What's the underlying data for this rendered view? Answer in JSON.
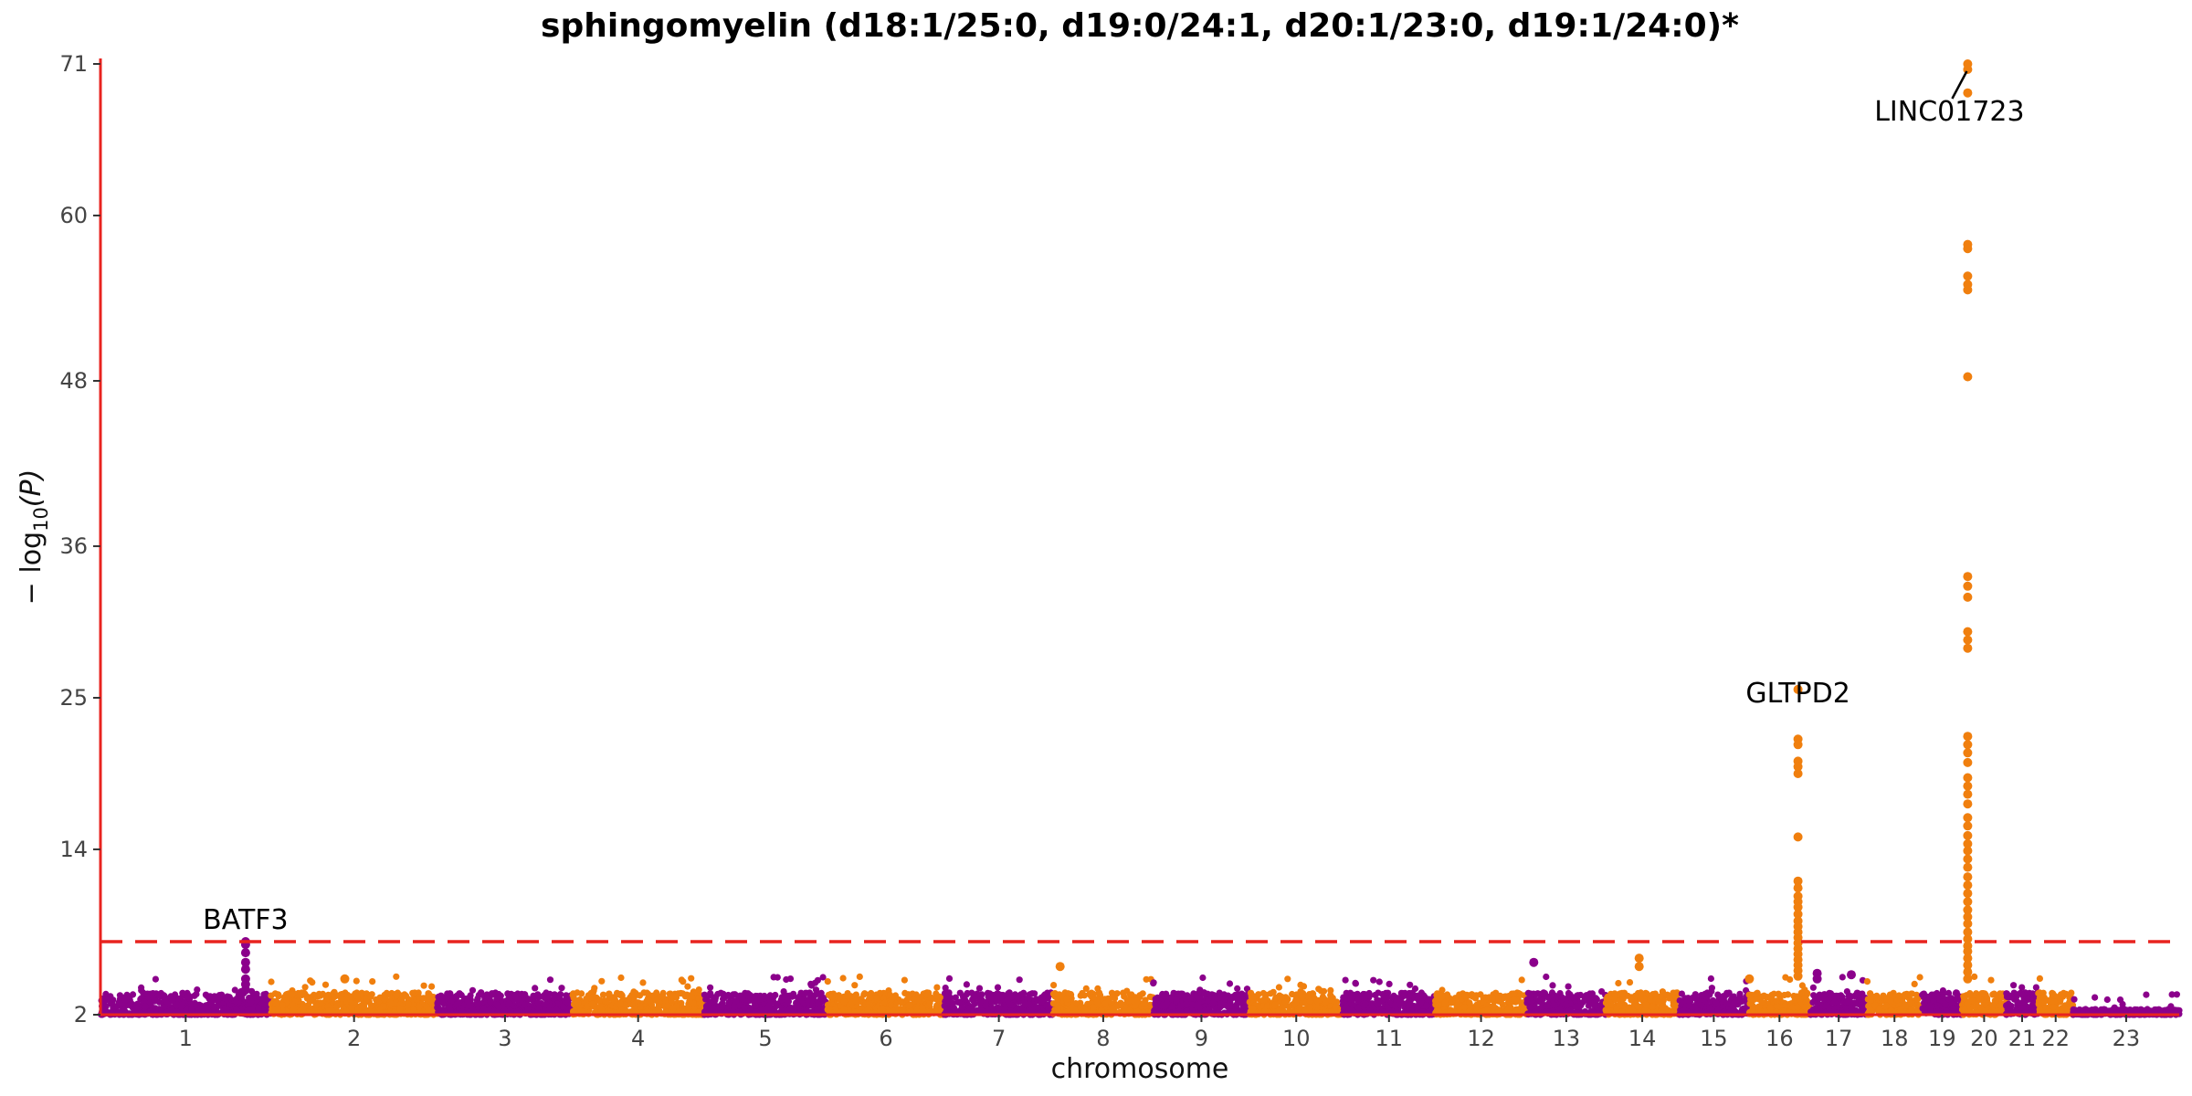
{
  "chart_data": {
    "type": "scatter",
    "title": "sphingomyelin (d18:1/25:0, d19:0/24:1, d20:1/23:0, d19:1/24:0)*",
    "xlabel": "chromosome",
    "ylabel": "−log10(P)",
    "ylabel_main": "− log",
    "ylabel_sub": "10",
    "ylabel_tail": "(P)",
    "ylim": [
      2,
      71
    ],
    "y_ticks": [
      2,
      14,
      25,
      36,
      48,
      60,
      71
    ],
    "significance_threshold": 7.3,
    "grid": false,
    "colors": {
      "odd_chromosomes": "#8b008b",
      "even_chromosomes": "#f07f0e",
      "axis_line": "#e8231f",
      "threshold_line": "#e8231f"
    },
    "chromosomes": [
      {
        "label": "1",
        "length": 249
      },
      {
        "label": "2",
        "length": 243
      },
      {
        "label": "3",
        "length": 198
      },
      {
        "label": "4",
        "length": 191
      },
      {
        "label": "5",
        "length": 181
      },
      {
        "label": "6",
        "length": 171
      },
      {
        "label": "7",
        "length": 159
      },
      {
        "label": "8",
        "length": 146
      },
      {
        "label": "9",
        "length": 141
      },
      {
        "label": "10",
        "length": 136
      },
      {
        "label": "11",
        "length": 135
      },
      {
        "label": "12",
        "length": 134
      },
      {
        "label": "13",
        "length": 115
      },
      {
        "label": "14",
        "length": 107
      },
      {
        "label": "15",
        "length": 102
      },
      {
        "label": "16",
        "length": 90
      },
      {
        "label": "17",
        "length": 83
      },
      {
        "label": "18",
        "length": 80
      },
      {
        "label": "19",
        "length": 59
      },
      {
        "label": "20",
        "length": 64
      },
      {
        "label": "21",
        "length": 47
      },
      {
        "label": "22",
        "length": 51
      },
      {
        "label": "23",
        "length": 155
      }
    ],
    "peaks": [
      {
        "chromosome": "1",
        "position": 212,
        "values": [
          7.3,
          7.1,
          6.5,
          5.8,
          5.3,
          4.6,
          4.2,
          3.8
        ]
      },
      {
        "chromosome": "2",
        "position": 108,
        "values": [
          4.6
        ]
      },
      {
        "chromosome": "8",
        "position": 10,
        "values": [
          5.5
        ]
      },
      {
        "chromosome": "13",
        "position": 10,
        "values": [
          5.8
        ]
      },
      {
        "chromosome": "14",
        "position": 49,
        "values": [
          6.1,
          5.5
        ]
      },
      {
        "chromosome": "16",
        "position": 1,
        "values": [
          4.6
        ]
      },
      {
        "chromosome": "16",
        "position": 72,
        "values": [
          25.6,
          22.0,
          21.6,
          20.4,
          20.0,
          19.5,
          14.9,
          11.7,
          11.2,
          10.6,
          10.2,
          9.8,
          9.3,
          8.8,
          8.4,
          8.0,
          7.6,
          7.2,
          6.8,
          6.4,
          6.0,
          5.6,
          5.2,
          4.8
        ]
      },
      {
        "chromosome": "17",
        "position": 10,
        "values": [
          5.0,
          4.6
        ]
      },
      {
        "chromosome": "17",
        "position": 60,
        "values": [
          4.9
        ]
      },
      {
        "chromosome": "20",
        "position": 8,
        "values": [
          71.0,
          70.6,
          68.9,
          57.9,
          57.6,
          55.6,
          55.0,
          54.6,
          48.3,
          33.8,
          33.1,
          32.3,
          29.8,
          29.2,
          28.6,
          22.2,
          21.6,
          21.0,
          20.3,
          19.2,
          18.6,
          18.0,
          17.3,
          16.3,
          15.7,
          15.0,
          14.4,
          13.9,
          13.3,
          12.7,
          12.0,
          11.4,
          10.8,
          10.2,
          9.6,
          9.1,
          8.6,
          8.0,
          7.5,
          7.0,
          6.6,
          6.1,
          5.6,
          5.1,
          4.6
        ]
      }
    ],
    "annotations": [
      {
        "label": "BATF3",
        "chromosome": "1",
        "position": 212,
        "value": 7.3
      },
      {
        "label": "GLTPD2",
        "chromosome": "16",
        "position": 72,
        "value": 25.6
      },
      {
        "label": "LINC01723",
        "chromosome": "20",
        "position": 8,
        "value": 71.0
      }
    ]
  }
}
